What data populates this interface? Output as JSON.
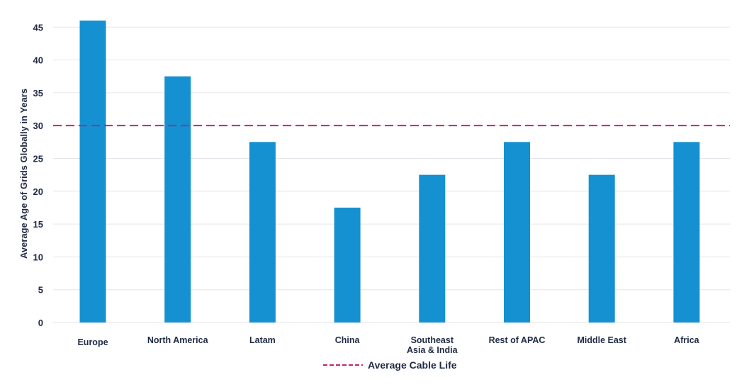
{
  "chart_data": {
    "type": "bar",
    "categories": [
      "Europe",
      "North America",
      "Latam",
      "China",
      "Southeast\nAsia & India",
      "Rest of APAC",
      "Middle East",
      "Africa"
    ],
    "series": [
      {
        "values": [
          46,
          37.5,
          27.5,
          17.5,
          22.5,
          27.5,
          22.5,
          27.5
        ]
      }
    ],
    "reference_line": {
      "name": "Average Cable Life",
      "value": 30,
      "style": "dashed",
      "color": "#c0237a"
    },
    "title": "",
    "xlabel": "",
    "ylabel": "Average Age of Grids Globally in Years",
    "ylim": [
      0,
      46
    ],
    "yticks": [
      0,
      5,
      10,
      15,
      20,
      25,
      30,
      35,
      40,
      45
    ],
    "grid": true,
    "legend": "bottom-center",
    "bar_color": "#1591d2"
  }
}
